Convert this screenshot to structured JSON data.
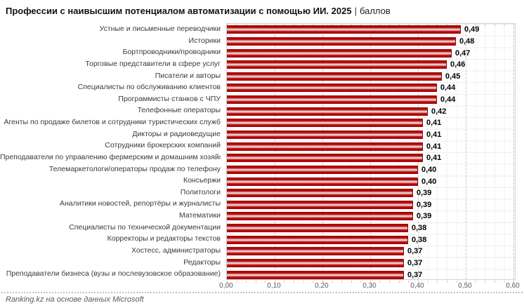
{
  "title": {
    "main": "Профессии с наивысшим потенциалом автоматизации с помощью ИИ. 2025",
    "separator": "|",
    "unit": "баллов"
  },
  "source": "Ranking.kz на основе данных Microsoft",
  "colors": {
    "bar": "#c00000",
    "bar_highlight": "#e4d6d6",
    "grid_major": "#c9c9c9",
    "grid_minor": "#efefef",
    "axis_text": "#595959",
    "label_text": "#3a3a3a"
  },
  "chart_data": {
    "type": "bar",
    "orientation": "horizontal",
    "title": "Профессии с наивысшим потенциалом автоматизации с помощью ИИ. 2025 | баллов",
    "xlabel": "",
    "ylabel": "",
    "xlim": [
      0,
      0.6
    ],
    "grid": {
      "major_step": 0.1,
      "minor_step": 0.02,
      "major_style": "dashed"
    },
    "legend": null,
    "categories": [
      "Устные и письменные переводчики",
      "Историки",
      "Бортпроводники/проводники",
      "Торговые представители в сфере услуг",
      "Писатели и авторы",
      "Специалисты по обслуживанию клиентов",
      "Программисты станков с ЧПУ",
      "Телефонные операторы",
      "Агенты по продаже билетов и сотрудники туристических служб",
      "Дикторы и радиоведущие",
      "Сотрудники брокерских компаний",
      "Преподаватели по управлению фермерским и домашним хозяйством",
      "Телемаркетологи/операторы продаж по телефону",
      "Консьержи",
      "Политологи",
      "Аналитики новостей, репортёры и журналисты",
      "Математики",
      "Специалисты по технической документации",
      "Корректоры и редакторы текстов",
      "Хостесс, администраторы",
      "Редакторы",
      "Преподаватели бизнеса (вузы и послевузовское образование)"
    ],
    "values": [
      0.49,
      0.48,
      0.47,
      0.46,
      0.45,
      0.44,
      0.44,
      0.42,
      0.41,
      0.41,
      0.41,
      0.41,
      0.4,
      0.4,
      0.39,
      0.39,
      0.39,
      0.38,
      0.38,
      0.37,
      0.37,
      0.37
    ],
    "value_labels": [
      "0,49",
      "0,48",
      "0,47",
      "0,46",
      "0,45",
      "0,44",
      "0,44",
      "0,42",
      "0,41",
      "0,41",
      "0,41",
      "0,41",
      "0,40",
      "0,40",
      "0,39",
      "0,39",
      "0,39",
      "0,38",
      "0,38",
      "0,37",
      "0,37",
      "0,37"
    ],
    "x_ticks": [
      {
        "value": 0.0,
        "label": "0,00"
      },
      {
        "value": 0.1,
        "label": "0,10"
      },
      {
        "value": 0.2,
        "label": "0,20"
      },
      {
        "value": 0.3,
        "label": "0,30"
      },
      {
        "value": 0.4,
        "label": "0,40"
      },
      {
        "value": 0.5,
        "label": "0,50"
      },
      {
        "value": 0.6,
        "label": "0,60"
      }
    ]
  }
}
